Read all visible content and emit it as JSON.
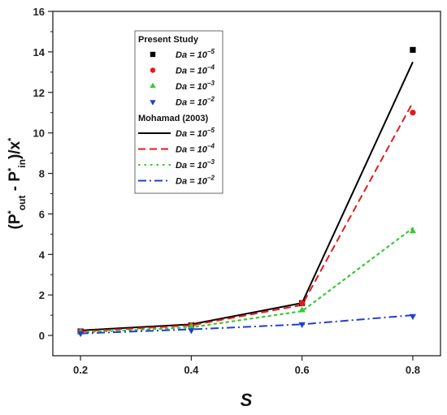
{
  "chart_data": {
    "type": "line",
    "title": "",
    "xlabel": "S",
    "ylabel": "(P*out - P*in)/x*",
    "x": [
      0.2,
      0.4,
      0.6,
      0.8
    ],
    "xlim": [
      0.15,
      0.85
    ],
    "ylim": [
      -1,
      16
    ],
    "xticks": [
      "0.2",
      "0.4",
      "0.6",
      "0.8"
    ],
    "yticks": [
      "0",
      "2",
      "4",
      "6",
      "8",
      "10",
      "12",
      "14",
      "16"
    ],
    "grid": false,
    "legend_position": "top-left",
    "legend_groups": [
      "Present Study",
      "Mohamad (2003)"
    ],
    "series": [
      {
        "name": "Da = 10^-5",
        "group": "Present Study",
        "kind": "marker",
        "marker": "square",
        "color": "#000000",
        "values": [
          0.2,
          0.5,
          1.6,
          14.1
        ]
      },
      {
        "name": "Da = 10^-4",
        "group": "Present Study",
        "kind": "marker",
        "marker": "circle",
        "color": "#e41a1c",
        "values": [
          0.2,
          0.5,
          1.6,
          11.0
        ]
      },
      {
        "name": "Da = 10^-3",
        "group": "Present Study",
        "kind": "marker",
        "marker": "triangle-up",
        "color": "#33cc33",
        "values": [
          0.15,
          0.45,
          1.25,
          5.15
        ]
      },
      {
        "name": "Da = 10^-2",
        "group": "Present Study",
        "kind": "marker",
        "marker": "triangle-down",
        "color": "#1f3fd6",
        "values": [
          0.1,
          0.25,
          0.55,
          0.95
        ]
      },
      {
        "name": "Da = 10^-5",
        "group": "Mohamad (2003)",
        "kind": "line",
        "dash": "solid",
        "color": "#000000",
        "values": [
          0.25,
          0.55,
          1.6,
          13.5
        ]
      },
      {
        "name": "Da = 10^-4",
        "group": "Mohamad (2003)",
        "kind": "line",
        "dash": "dashed",
        "color": "#e41a1c",
        "values": [
          0.2,
          0.5,
          1.5,
          11.5
        ]
      },
      {
        "name": "Da = 10^-3",
        "group": "Mohamad (2003)",
        "kind": "line",
        "dash": "dotted",
        "color": "#33cc33",
        "values": [
          0.15,
          0.4,
          1.2,
          5.3
        ]
      },
      {
        "name": "Da = 10^-2",
        "group": "Mohamad (2003)",
        "kind": "line",
        "dash": "dashdot",
        "color": "#1f3fd6",
        "values": [
          0.1,
          0.3,
          0.55,
          1.0
        ]
      }
    ]
  }
}
